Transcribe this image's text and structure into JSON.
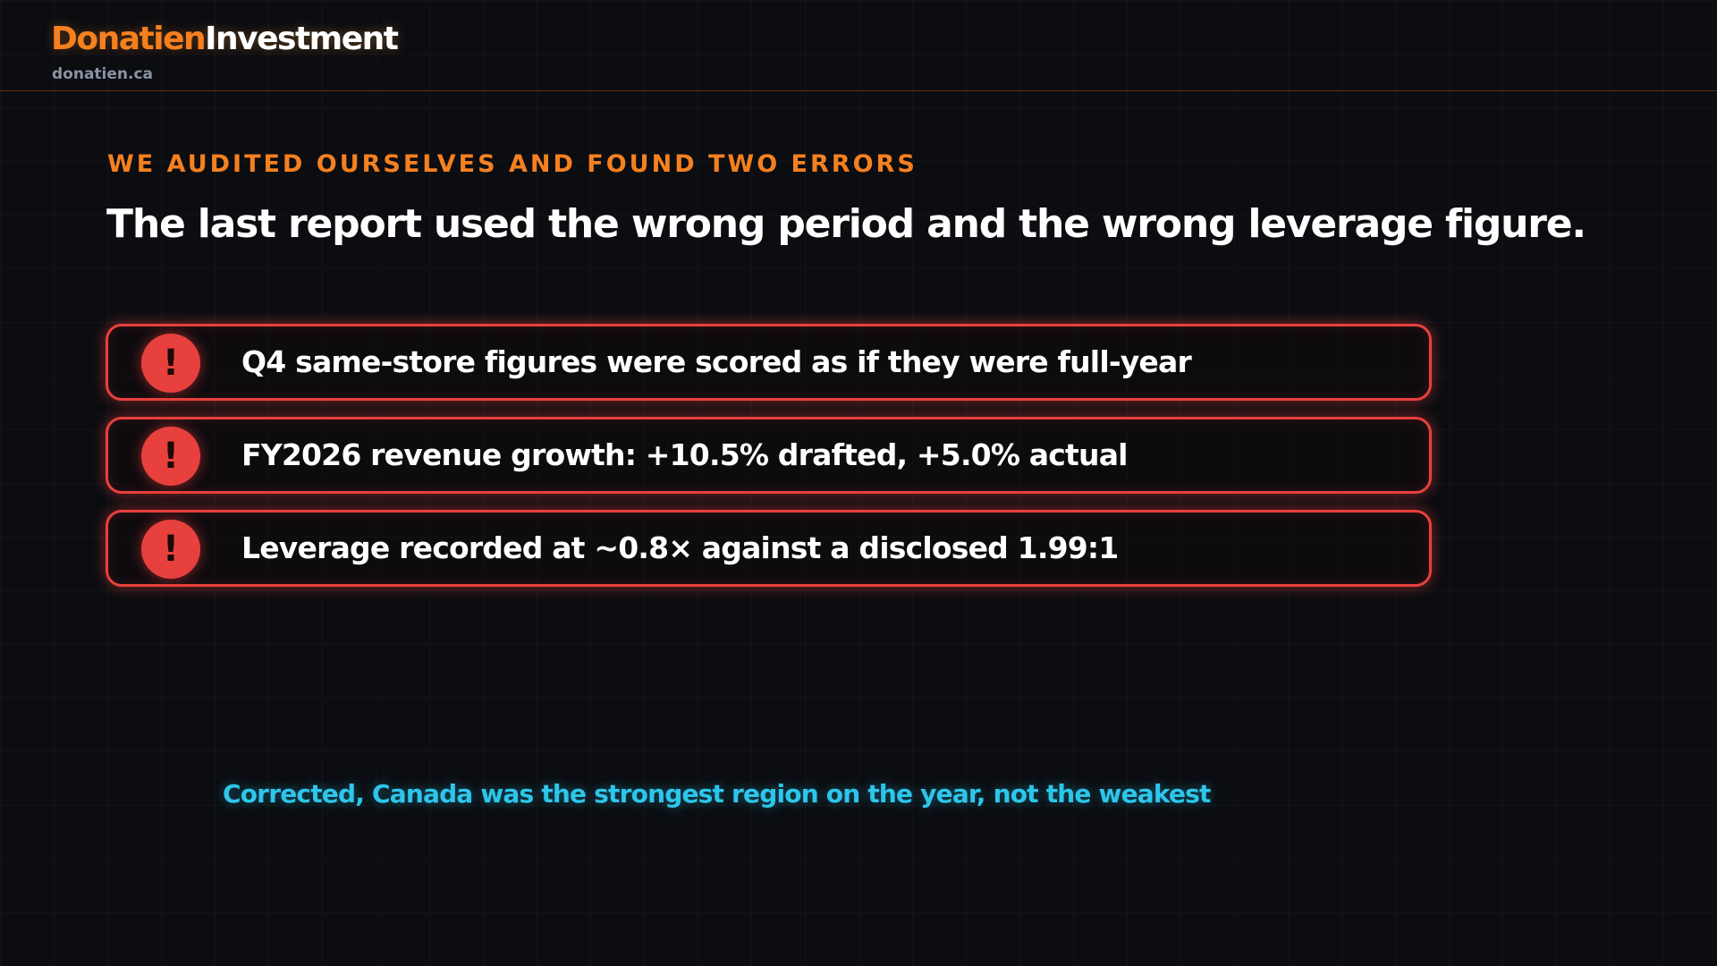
{
  "header": {
    "brand_primary": "Donatien",
    "brand_secondary": "Investment",
    "domain": "donatien.ca"
  },
  "main": {
    "kicker": "WE AUDITED OURSELVES AND FOUND TWO ERRORS",
    "headline": "The last report used the wrong period and the wrong leverage figure.",
    "errors": [
      {
        "icon": "!",
        "text": "Q4 same-store figures were scored as if they were full-year"
      },
      {
        "icon": "!",
        "text": "FY2026 revenue growth: +10.5% drafted, +5.0% actual"
      },
      {
        "icon": "!",
        "text": "Leverage recorded at ~0.8× against a disclosed 1.99:1"
      }
    ],
    "conclusion": "Corrected, Canada was the strongest region on the year, not the weakest"
  },
  "colors": {
    "background": "#0b0d11",
    "brand_orange": "#f5801f",
    "error_red": "#e8403c",
    "accent_cyan": "#2ec5ea"
  },
  "icons": {
    "error": "exclamation-icon"
  }
}
